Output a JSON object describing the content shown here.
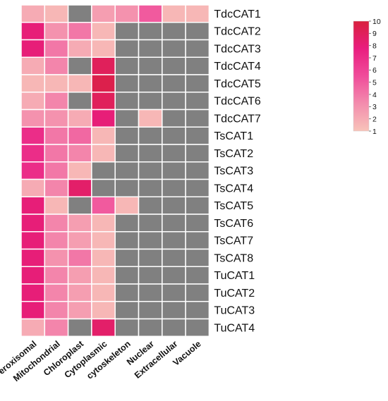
{
  "chart_data": {
    "type": "heatmap",
    "title": "",
    "xlabel": "",
    "ylabel": "",
    "columns": [
      "Peroxisomal",
      "Mitochondrial",
      "Chloroplast",
      "Cytoplasmic",
      "cytoskeleton",
      "Nuclear",
      "Extracellular",
      "Vacuole"
    ],
    "rows": [
      "TdcCAT1",
      "TdcCAT2",
      "TdcCAT3",
      "TdcCAT4",
      "TdcCAT5",
      "TdcCAT6",
      "TdcCAT7",
      "TsCAT1",
      "TsCAT2",
      "TsCAT3",
      "TsCAT4",
      "TsCAT5",
      "TsCAT6",
      "TsCAT7",
      "TsCAT8",
      "TuCAT1",
      "TuCAT2",
      "TuCAT3",
      "TuCAT4"
    ],
    "missing_value_color": "#808080",
    "values": [
      [
        2,
        1.5,
        null,
        2.5,
        3,
        5,
        1.5,
        1.5
      ],
      [
        8,
        3,
        4,
        1.5,
        null,
        null,
        null,
        null
      ],
      [
        8,
        4,
        2,
        1.5,
        null,
        null,
        null,
        null
      ],
      [
        2,
        3.5,
        null,
        9,
        null,
        null,
        null,
        null
      ],
      [
        1.5,
        1.5,
        1.5,
        9.5,
        null,
        null,
        null,
        null
      ],
      [
        2,
        3.5,
        null,
        9,
        null,
        null,
        null,
        null
      ],
      [
        3,
        3,
        2,
        8,
        null,
        1.5,
        null,
        null
      ],
      [
        7,
        4,
        4.5,
        1.5,
        null,
        null,
        null,
        null
      ],
      [
        7,
        4,
        3.5,
        1.5,
        null,
        null,
        null,
        null
      ],
      [
        7,
        4,
        1.5,
        null,
        null,
        null,
        null,
        null
      ],
      [
        2,
        3.5,
        8.5,
        null,
        null,
        null,
        null,
        null
      ],
      [
        8,
        1.5,
        null,
        5,
        1.5,
        null,
        null,
        null
      ],
      [
        8,
        3.5,
        2.5,
        1.5,
        null,
        null,
        null,
        null
      ],
      [
        8,
        3.5,
        2.5,
        1.5,
        null,
        null,
        null,
        null
      ],
      [
        8,
        3,
        4,
        1.5,
        null,
        null,
        null,
        null
      ],
      [
        8,
        3.5,
        2.5,
        1.5,
        null,
        null,
        null,
        null
      ],
      [
        8,
        3.5,
        2.5,
        1.5,
        null,
        null,
        null,
        null
      ],
      [
        8,
        3.5,
        2.5,
        1.5,
        null,
        null,
        null,
        null
      ],
      [
        2,
        3.5,
        null,
        8.5,
        null,
        null,
        null,
        null
      ]
    ],
    "colorbar": {
      "min": 1,
      "max": 10,
      "ticks": [
        "1",
        "2",
        "3",
        "4",
        "5",
        "6",
        "7",
        "8",
        "9",
        "10"
      ],
      "colors": [
        "#F8C3B9",
        "#F38CAD",
        "#F04C9A",
        "#E91E7F",
        "#D8213E"
      ]
    }
  }
}
